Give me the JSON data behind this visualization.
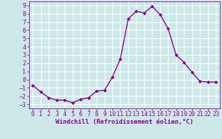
{
  "x": [
    0,
    1,
    2,
    3,
    4,
    5,
    6,
    7,
    8,
    9,
    10,
    11,
    12,
    13,
    14,
    15,
    16,
    17,
    18,
    19,
    20,
    21,
    22,
    23
  ],
  "y": [
    -0.7,
    -1.5,
    -2.2,
    -2.5,
    -2.5,
    -2.8,
    -2.4,
    -2.2,
    -1.4,
    -1.3,
    0.3,
    2.5,
    7.4,
    8.3,
    8.1,
    8.9,
    7.9,
    6.2,
    3.0,
    2.1,
    0.9,
    -0.2,
    -0.3,
    -0.3
  ],
  "line_color": "#880088",
  "marker": "D",
  "marker_size": 2.2,
  "bg_color": "#cce8e8",
  "grid_color": "#ffffff",
  "xlabel": "Windchill (Refroidissement éolien,°C)",
  "xlim": [
    -0.5,
    23.5
  ],
  "ylim": [
    -3.5,
    9.5
  ],
  "xticks": [
    0,
    1,
    2,
    3,
    4,
    5,
    6,
    7,
    8,
    9,
    10,
    11,
    12,
    13,
    14,
    15,
    16,
    17,
    18,
    19,
    20,
    21,
    22,
    23
  ],
  "yticks": [
    -3,
    -2,
    -1,
    0,
    1,
    2,
    3,
    4,
    5,
    6,
    7,
    8,
    9
  ],
  "label_fontsize": 6.5,
  "tick_fontsize": 6.0,
  "line_width": 1.0
}
